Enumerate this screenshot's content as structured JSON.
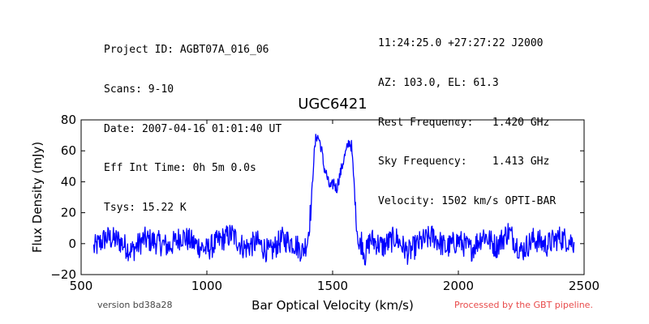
{
  "header_left": [
    "Project ID: AGBT07A_016_06",
    "Scans: 9-10",
    "Date: 2007-04-16 01:01:40 UT",
    "Eff Int Time: 0h 5m 0.0s",
    "Tsys: 15.22 K"
  ],
  "header_right": [
    "11:24:25.0 +27:27:22 J2000",
    "AZ: 103.0, EL: 61.3",
    "Rest Frequency:   1.420 GHz",
    "Sky Frequency:    1.413 GHz",
    "Velocity: 1502 km/s OPTI-BAR"
  ],
  "footer": {
    "version": "version bd38a28",
    "pipeline": "Processed by the GBT pipeline."
  },
  "colors": {
    "line": "#0000ff",
    "pipeline": "#e84a4a"
  },
  "chart_data": {
    "type": "line",
    "title": "UGC6421",
    "xlabel": "Bar Optical Velocity (km/s)",
    "ylabel": "Flux Density (mJy)",
    "xlim": [
      500,
      2500
    ],
    "ylim": [
      -20,
      80
    ],
    "xticks": [
      500,
      1000,
      1500,
      2000,
      2500
    ],
    "yticks": [
      -20,
      0,
      20,
      40,
      60,
      80
    ],
    "grid": false,
    "series": [
      {
        "x": [
          550,
          600,
          650,
          700,
          750,
          800,
          850,
          900,
          950,
          1000,
          1050,
          1100,
          1150,
          1200,
          1250,
          1300,
          1350,
          1380,
          1400,
          1415,
          1425,
          1435,
          1445,
          1455,
          1465,
          1475,
          1485,
          1495,
          1505,
          1515,
          1525,
          1535,
          1545,
          1555,
          1565,
          1575,
          1585,
          1595,
          1605,
          1615,
          1630,
          1650,
          1700,
          1750,
          1800,
          1850,
          1900,
          1950,
          2000,
          2050,
          2100,
          2150,
          2200,
          2250,
          2300,
          2350,
          2400,
          2460
        ],
        "y": [
          -3,
          4,
          2,
          -5,
          3,
          1,
          -2,
          5,
          0,
          -4,
          2,
          6,
          -3,
          1,
          -6,
          3,
          0,
          -5,
          2,
          25,
          55,
          70,
          68,
          62,
          50,
          45,
          38,
          36,
          40,
          35,
          42,
          48,
          55,
          60,
          66,
          63,
          40,
          12,
          -3,
          2,
          -8,
          3,
          -2,
          4,
          -6,
          1,
          5,
          -3,
          2,
          -4,
          6,
          -2,
          8,
          -5,
          3,
          -1,
          4,
          1
        ]
      }
    ]
  }
}
